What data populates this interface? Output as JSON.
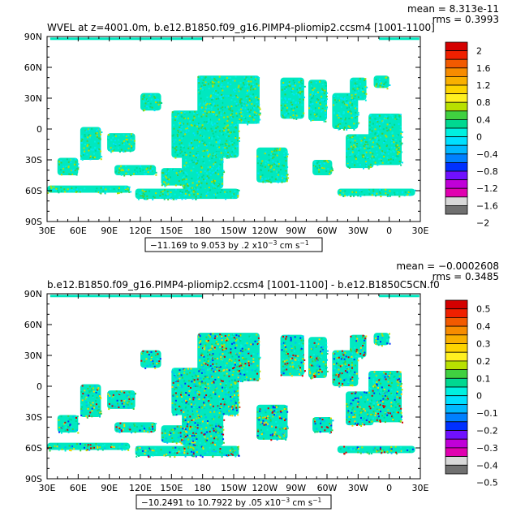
{
  "chart_data": [
    {
      "type": "heatmap",
      "title": "WVEL at z=4001.0m, b.e12.B1850.f09_g16.PIMP4-pliomip2.ccsm4 [1001-1100]",
      "stats": {
        "mean": "mean = 8.313e-11",
        "rms": "rms = 0.3993"
      },
      "y_ticks": [
        "90N",
        "60N",
        "30N",
        "0",
        "30S",
        "60S",
        "90S"
      ],
      "x_ticks": [
        "30E",
        "60E",
        "90E",
        "120E",
        "150E",
        "180",
        "150W",
        "120W",
        "90W",
        "60W",
        "30W",
        "0",
        "30E"
      ],
      "range_prefix": "−11.169 to 9.053 by .2 x10",
      "range_exp": "−3",
      "range_units": " cm s",
      "range_units_exp": "−1",
      "colorbar_labels": [
        "2",
        "1.6",
        "1.2",
        "0.8",
        "0.4",
        "0",
        "−0.4",
        "−0.8",
        "−1.2",
        "−1.6",
        "−2"
      ],
      "colorbar_colors": [
        "#d40000",
        "#f02000",
        "#f25a00",
        "#f78c00",
        "#f9b000",
        "#fdd400",
        "#fff020",
        "#b8e000",
        "#40d040",
        "#00d890",
        "#00f0e0",
        "#00e0ff",
        "#00b8ff",
        "#0080ff",
        "#0030ff",
        "#7010ff",
        "#c000d8",
        "#e000b0",
        "#d8d8d8",
        "#707070"
      ],
      "dominant_color": "#00e8c0"
    },
    {
      "type": "heatmap",
      "title": "b.e12.B1850.f09_g16.PIMP4-pliomip2.ccsm4 [1001-1100] - b.e12.B1850C5CN.f0",
      "stats": {
        "mean": "mean = −0.0002608",
        "rms": "rms = 0.3485"
      },
      "y_ticks": [
        "90N",
        "60N",
        "30N",
        "0",
        "30S",
        "60S",
        "90S"
      ],
      "x_ticks": [
        "30E",
        "60E",
        "90E",
        "120E",
        "150E",
        "180",
        "150W",
        "120W",
        "90W",
        "60W",
        "30W",
        "0",
        "30E"
      ],
      "range_prefix": "−10.2491 to 10.7922 by .05 x10",
      "range_exp": "−3",
      "range_units": " cm s",
      "range_units_exp": "−1",
      "colorbar_labels": [
        "0.5",
        "0.4",
        "0.3",
        "0.2",
        "0.1",
        "0",
        "−0.1",
        "−0.2",
        "−0.3",
        "−0.4",
        "−0.5"
      ],
      "colorbar_colors": [
        "#d40000",
        "#f02000",
        "#f25a00",
        "#f78c00",
        "#f9b000",
        "#fdd400",
        "#fff020",
        "#b8e000",
        "#40d040",
        "#00d890",
        "#00f0e0",
        "#00e0ff",
        "#00b8ff",
        "#0080ff",
        "#0030ff",
        "#7010ff",
        "#c000d8",
        "#e000b0",
        "#d8d8d8",
        "#707070"
      ],
      "dominant_color": "#00e8c0"
    }
  ]
}
